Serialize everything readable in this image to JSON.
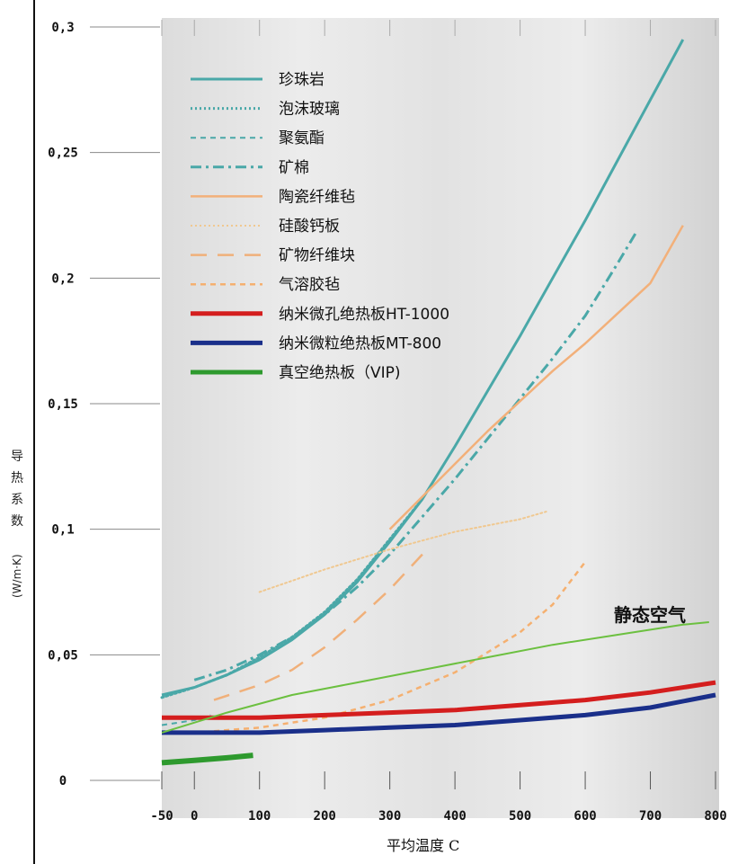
{
  "chart_data": {
    "type": "line",
    "xlabel": "平均温度 C",
    "ylabel_lines": [
      "导",
      "热",
      "系",
      "数"
    ],
    "ylabel_unit": "(W/m·K)",
    "x_ticks": [
      "-50",
      "0",
      "100",
      "200",
      "300",
      "400",
      "500",
      "600",
      "700",
      "800"
    ],
    "x_tick_values": [
      -50,
      0,
      100,
      200,
      300,
      400,
      500,
      600,
      700,
      800
    ],
    "y_ticks": [
      "0",
      "0,05",
      "0,1",
      "0,15",
      "0,2",
      "0,25",
      "0,3"
    ],
    "y_tick_values": [
      0,
      0.05,
      0.1,
      0.15,
      0.2,
      0.25,
      0.3
    ],
    "xlim": [
      -50,
      800
    ],
    "ylim": [
      0,
      0.3
    ],
    "legend_position": "top-left",
    "annotation": "静态空气",
    "series": [
      {
        "name": "珍珠岩",
        "color": "#4aa8a8",
        "style": "solid",
        "width": 3,
        "x": [
          -50,
          0,
          50,
          100,
          150,
          200,
          250,
          300,
          350,
          400,
          450,
          500,
          550,
          600,
          650,
          700,
          750
        ],
        "y": [
          0.034,
          0.037,
          0.042,
          0.048,
          0.056,
          0.066,
          0.079,
          0.095,
          0.112,
          0.133,
          0.155,
          0.177,
          0.2,
          0.223,
          0.247,
          0.271,
          0.295
        ]
      },
      {
        "name": "泡沫玻璃",
        "color": "#4aa8a8",
        "style": "dotted",
        "width": 3,
        "x": [
          -50,
          0,
          50,
          100,
          150,
          200,
          250,
          300,
          350
        ],
        "y": [
          0.033,
          0.037,
          0.042,
          0.049,
          0.057,
          0.067,
          0.08,
          0.096,
          0.112
        ]
      },
      {
        "name": "聚氨酯",
        "color": "#4aa8a8",
        "style": "dashed",
        "width": 2,
        "x": [
          -50,
          -25,
          0,
          25
        ],
        "y": [
          0.022,
          0.023,
          0.024,
          0.026
        ]
      },
      {
        "name": "矿棉",
        "color": "#4aa8a8",
        "style": "dashdot",
        "width": 3,
        "x": [
          0,
          50,
          100,
          150,
          200,
          250,
          300,
          350,
          400,
          450,
          500,
          550,
          600,
          650,
          680
        ],
        "y": [
          0.04,
          0.044,
          0.05,
          0.057,
          0.066,
          0.077,
          0.09,
          0.105,
          0.12,
          0.136,
          0.152,
          0.168,
          0.185,
          0.206,
          0.219
        ]
      },
      {
        "name": "陶瓷纤维毡",
        "color": "#f2b07a",
        "style": "solid",
        "width": 2.5,
        "x": [
          300,
          350,
          400,
          450,
          500,
          550,
          600,
          650,
          700,
          750
        ],
        "y": [
          0.1,
          0.113,
          0.126,
          0.139,
          0.151,
          0.163,
          0.174,
          0.186,
          0.198,
          0.221
        ]
      },
      {
        "name": "硅酸钙板",
        "color": "#f0c890",
        "style": "dotted",
        "width": 2,
        "x": [
          100,
          200,
          300,
          400,
          500,
          540
        ],
        "y": [
          0.075,
          0.084,
          0.092,
          0.099,
          0.104,
          0.107
        ]
      },
      {
        "name": "矿物纤维块",
        "color": "#f0b07a",
        "style": "longdash",
        "width": 2.5,
        "x": [
          30,
          100,
          150,
          200,
          250,
          300,
          350
        ],
        "y": [
          0.032,
          0.038,
          0.044,
          0.053,
          0.064,
          0.076,
          0.09
        ]
      },
      {
        "name": "气溶胶毡",
        "color": "#f5b070",
        "style": "dashed",
        "width": 2.5,
        "x": [
          0,
          100,
          200,
          300,
          400,
          500,
          550,
          600
        ],
        "y": [
          0.019,
          0.021,
          0.025,
          0.032,
          0.043,
          0.059,
          0.07,
          0.087
        ]
      },
      {
        "name": "纳米微孔绝热板HT-1000",
        "color": "#d41e1e",
        "style": "solid",
        "width": 5,
        "x": [
          -50,
          100,
          200,
          300,
          400,
          500,
          600,
          700,
          800
        ],
        "y": [
          0.025,
          0.025,
          0.026,
          0.027,
          0.028,
          0.03,
          0.032,
          0.035,
          0.039
        ]
      },
      {
        "name": "纳米微粒绝热板MT-800",
        "color": "#1a2f8a",
        "style": "solid",
        "width": 5,
        "x": [
          -50,
          100,
          200,
          300,
          400,
          500,
          600,
          700,
          800
        ],
        "y": [
          0.019,
          0.019,
          0.02,
          0.021,
          0.022,
          0.024,
          0.026,
          0.029,
          0.034
        ]
      },
      {
        "name": "真空绝热板（VIP)",
        "color": "#2e9a2e",
        "style": "solid",
        "width": 6,
        "x": [
          -50,
          0,
          50,
          90
        ],
        "y": [
          0.007,
          0.008,
          0.009,
          0.01
        ]
      },
      {
        "name": "",
        "color": "#6cc040",
        "style": "solid",
        "width": 2,
        "x": [
          -50,
          50,
          150,
          250,
          350,
          450,
          550,
          650,
          750,
          790
        ],
        "y": [
          0.019,
          0.027,
          0.034,
          0.039,
          0.044,
          0.049,
          0.054,
          0.058,
          0.062,
          0.063
        ]
      }
    ]
  }
}
